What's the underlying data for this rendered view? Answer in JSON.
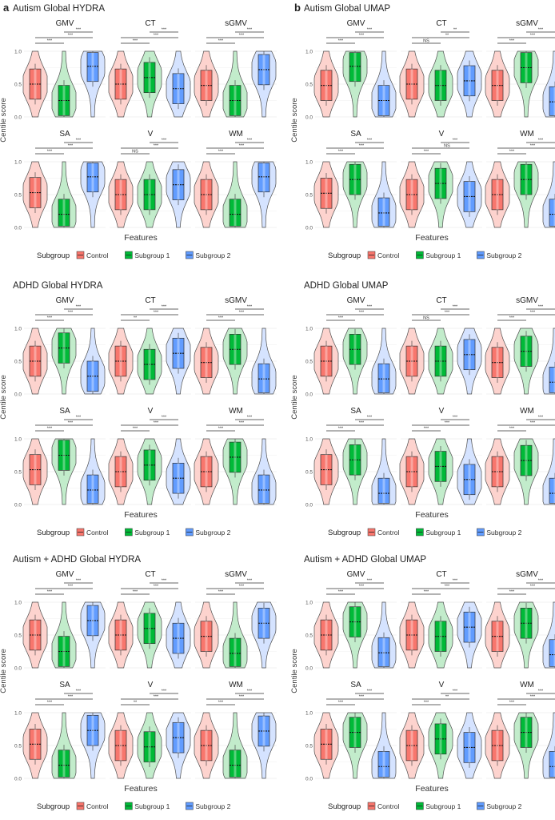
{
  "panel_letters": [
    "a",
    "b"
  ],
  "legend": {
    "title": "Subgroup",
    "items": [
      {
        "label": "Control",
        "color": "#F8766D"
      },
      {
        "label": "Subgroup 1",
        "color": "#00BA38"
      },
      {
        "label": "Subgroup 2",
        "color": "#619CFF"
      }
    ]
  },
  "colors": {
    "fill": [
      "#F8766D",
      "#00BA38",
      "#619CFF"
    ],
    "dark": [
      "#D9534A",
      "#1E9A3E",
      "#3F7FE0"
    ],
    "light": [
      "#FDD1CC",
      "#BFEBC9",
      "#D3E2FF"
    ]
  },
  "chart_data": [
    {
      "type": "violin",
      "title": "Autism Global HYDRA",
      "xlabel": "Features",
      "ylabel": "Centile score",
      "ylim": [
        0,
        1
      ],
      "yticks": [
        "0.0",
        "0.5",
        "1.0"
      ],
      "groups": [
        "Control",
        "Subgroup 1",
        "Subgroup 2"
      ],
      "subplots": [
        {
          "name": "GMV",
          "medians": [
            0.5,
            0.25,
            0.77
          ],
          "sig": [
            "***",
            "***",
            "***"
          ]
        },
        {
          "name": "CT",
          "medians": [
            0.5,
            0.6,
            0.43
          ],
          "sig": [
            "***",
            "***",
            "***"
          ]
        },
        {
          "name": "sGMV",
          "medians": [
            0.48,
            0.25,
            0.72
          ],
          "sig": [
            "***",
            "***",
            "***"
          ]
        },
        {
          "name": "SA",
          "medians": [
            0.53,
            0.2,
            0.77
          ],
          "sig": [
            "***",
            "***",
            "***"
          ]
        },
        {
          "name": "V",
          "medians": [
            0.5,
            0.5,
            0.65
          ],
          "sig": [
            "NS",
            "***",
            "***"
          ]
        },
        {
          "name": "WM",
          "medians": [
            0.5,
            0.2,
            0.77
          ],
          "sig": [
            "***",
            "***",
            "***"
          ]
        }
      ]
    },
    {
      "type": "violin",
      "title": "Autism Global UMAP",
      "xlabel": "Features",
      "ylabel": "Centile score",
      "ylim": [
        0,
        1
      ],
      "yticks": [
        "0.0",
        "0.5",
        "1.0"
      ],
      "groups": [
        "Control",
        "Subgroup 1",
        "Subgroup 2"
      ],
      "subplots": [
        {
          "name": "GMV",
          "medians": [
            0.48,
            0.77,
            0.25
          ],
          "sig": [
            "***",
            "***",
            "***"
          ]
        },
        {
          "name": "CT",
          "medians": [
            0.5,
            0.48,
            0.55
          ],
          "sig": [
            "NS",
            "**",
            "**"
          ]
        },
        {
          "name": "sGMV",
          "medians": [
            0.48,
            0.75,
            0.23
          ],
          "sig": [
            "***",
            "***",
            "***"
          ]
        },
        {
          "name": "SA",
          "medians": [
            0.52,
            0.73,
            0.22
          ],
          "sig": [
            "***",
            "***",
            "***"
          ]
        },
        {
          "name": "V",
          "medians": [
            0.5,
            0.67,
            0.47
          ],
          "sig": [
            "***",
            "NS",
            "***"
          ]
        },
        {
          "name": "WM",
          "medians": [
            0.5,
            0.73,
            0.2
          ],
          "sig": [
            "***",
            "***",
            "***"
          ]
        }
      ]
    },
    {
      "type": "violin",
      "title": "ADHD Global HYDRA",
      "xlabel": "Features",
      "ylabel": "Centile score",
      "ylim": [
        0,
        1
      ],
      "yticks": [
        "0.0",
        "0.5",
        "1.0"
      ],
      "groups": [
        "Control",
        "Subgroup 1",
        "Subgroup 2"
      ],
      "subplots": [
        {
          "name": "GMV",
          "medians": [
            0.5,
            0.7,
            0.27
          ],
          "sig": [
            "***",
            "***",
            "***"
          ]
        },
        {
          "name": "CT",
          "medians": [
            0.5,
            0.45,
            0.62
          ],
          "sig": [
            "**",
            "***",
            "***"
          ]
        },
        {
          "name": "sGMV",
          "medians": [
            0.48,
            0.68,
            0.23
          ],
          "sig": [
            "***",
            "***",
            "***"
          ]
        },
        {
          "name": "SA",
          "medians": [
            0.53,
            0.75,
            0.22
          ],
          "sig": [
            "***",
            "***",
            "***"
          ]
        },
        {
          "name": "V",
          "medians": [
            0.5,
            0.6,
            0.4
          ],
          "sig": [
            "***",
            "***",
            "***"
          ]
        },
        {
          "name": "WM",
          "medians": [
            0.5,
            0.72,
            0.22
          ],
          "sig": [
            "***",
            "***",
            "***"
          ]
        }
      ]
    },
    {
      "type": "violin",
      "title": "ADHD Global UMAP",
      "xlabel": "Features",
      "ylabel": "Centile score",
      "ylim": [
        0,
        1
      ],
      "yticks": [
        "0.0",
        "0.5",
        "1.0"
      ],
      "groups": [
        "Control",
        "Subgroup 1",
        "Subgroup 2"
      ],
      "subplots": [
        {
          "name": "GMV",
          "medians": [
            0.5,
            0.68,
            0.23
          ],
          "sig": [
            "***",
            "***",
            "***"
          ]
        },
        {
          "name": "CT",
          "medians": [
            0.5,
            0.5,
            0.6
          ],
          "sig": [
            "NS",
            "***",
            "***"
          ]
        },
        {
          "name": "sGMV",
          "medians": [
            0.48,
            0.65,
            0.18
          ],
          "sig": [
            "***",
            "***",
            "***"
          ]
        },
        {
          "name": "SA",
          "medians": [
            0.53,
            0.68,
            0.17
          ],
          "sig": [
            "***",
            "***",
            "***"
          ]
        },
        {
          "name": "V",
          "medians": [
            0.5,
            0.58,
            0.38
          ],
          "sig": [
            "***",
            "***",
            "***"
          ]
        },
        {
          "name": "WM",
          "medians": [
            0.5,
            0.67,
            0.17
          ],
          "sig": [
            "***",
            "***",
            "***"
          ]
        }
      ]
    },
    {
      "type": "violin",
      "title": "Autism + ADHD Global HYDRA",
      "xlabel": "Features",
      "ylabel": "Centile score",
      "ylim": [
        0,
        1
      ],
      "yticks": [
        "0.0",
        "0.5",
        "1.0"
      ],
      "groups": [
        "Control",
        "Subgroup 1",
        "Subgroup 2"
      ],
      "subplots": [
        {
          "name": "GMV",
          "medians": [
            0.5,
            0.25,
            0.72
          ],
          "sig": [
            "***",
            "***",
            "***"
          ]
        },
        {
          "name": "CT",
          "medians": [
            0.5,
            0.6,
            0.45
          ],
          "sig": [
            "***",
            "***",
            "***"
          ]
        },
        {
          "name": "sGMV",
          "medians": [
            0.48,
            0.22,
            0.68
          ],
          "sig": [
            "***",
            "***",
            "***"
          ]
        },
        {
          "name": "SA",
          "medians": [
            0.52,
            0.2,
            0.73
          ],
          "sig": [
            "***",
            "***",
            "***"
          ]
        },
        {
          "name": "V",
          "medians": [
            0.5,
            0.48,
            0.62
          ],
          "sig": [
            "**",
            "***",
            "***"
          ]
        },
        {
          "name": "WM",
          "medians": [
            0.5,
            0.2,
            0.72
          ],
          "sig": [
            "***",
            "***",
            "***"
          ]
        }
      ]
    },
    {
      "type": "violin",
      "title": "Autism + ADHD Global UMAP",
      "xlabel": "Features",
      "ylabel": "Centile score",
      "ylim": [
        0,
        1
      ],
      "yticks": [
        "0.0",
        "0.5",
        "1.0"
      ],
      "groups": [
        "Control",
        "Subgroup 1",
        "Subgroup 2"
      ],
      "subplots": [
        {
          "name": "GMV",
          "medians": [
            0.5,
            0.7,
            0.23
          ],
          "sig": [
            "***",
            "***",
            "***"
          ]
        },
        {
          "name": "CT",
          "medians": [
            0.5,
            0.48,
            0.62
          ],
          "sig": [
            "***",
            "***",
            "***"
          ]
        },
        {
          "name": "sGMV",
          "medians": [
            0.48,
            0.68,
            0.2
          ],
          "sig": [
            "***",
            "***",
            "***"
          ]
        },
        {
          "name": "SA",
          "medians": [
            0.52,
            0.7,
            0.18
          ],
          "sig": [
            "***",
            "***",
            "***"
          ]
        },
        {
          "name": "V",
          "medians": [
            0.5,
            0.6,
            0.47
          ],
          "sig": [
            "***",
            "**",
            "***"
          ]
        },
        {
          "name": "WM",
          "medians": [
            0.5,
            0.7,
            0.18
          ],
          "sig": [
            "***",
            "***",
            "***"
          ]
        }
      ]
    }
  ]
}
